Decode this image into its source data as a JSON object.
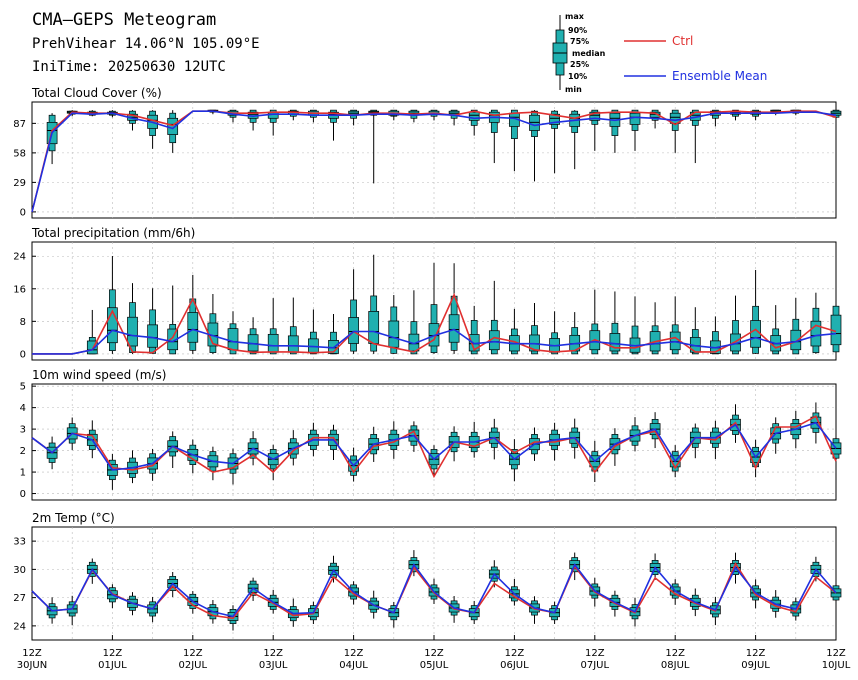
{
  "header": {
    "title": "CMA—GEPS Meteogram",
    "location": "PrehVihear 14.06°N 105.09°E",
    "init_time": "IniTime: 20250630 12UTC"
  },
  "legend": {
    "box_labels": [
      "max",
      "90%",
      "75%",
      "median",
      "25%",
      "10%",
      "min"
    ],
    "ctrl_label": "Ctrl",
    "mean_label": "Ensemble Mean",
    "ctrl_color": "#e03030",
    "mean_color": "#2030e0",
    "box_fill": "#20b0b0"
  },
  "x_axis": {
    "ticks": [
      {
        "top": "12Z",
        "bottom": "30JUN"
      },
      {
        "top": "12Z",
        "bottom": "01JUL"
      },
      {
        "top": "12Z",
        "bottom": "02JUL"
      },
      {
        "top": "12Z",
        "bottom": "03JUL"
      },
      {
        "top": "12Z",
        "bottom": "04JUL"
      },
      {
        "top": "12Z",
        "bottom": "05JUL"
      },
      {
        "top": "12Z",
        "bottom": "06JUL"
      },
      {
        "top": "12Z",
        "bottom": "07JUL"
      },
      {
        "top": "12Z",
        "bottom": "08JUL"
      },
      {
        "top": "12Z",
        "bottom": "09JUL"
      },
      {
        "top": "12Z",
        "bottom": "10JUL"
      }
    ]
  },
  "chart_data": [
    {
      "type": "box-line",
      "title": "Total Cloud Cover (%)",
      "ylim": [
        -6,
        108
      ],
      "yticks": [
        0,
        29,
        58,
        87
      ],
      "x_hours": [
        0,
        6,
        12,
        18,
        24,
        30,
        36,
        42,
        48,
        54,
        60,
        66,
        72,
        78,
        84,
        90,
        96,
        102,
        108,
        114,
        120,
        126,
        132,
        138,
        144,
        150,
        156,
        162,
        168,
        174,
        180,
        186,
        192,
        198,
        204,
        210,
        216,
        222,
        228,
        234,
        240
      ],
      "ctrl": [
        0,
        80,
        98,
        97,
        97,
        95,
        90,
        85,
        99,
        99,
        97,
        97,
        98,
        98,
        97,
        97,
        95,
        97,
        97,
        96,
        97,
        95,
        99,
        95,
        97,
        98,
        95,
        92,
        97,
        98,
        98,
        97,
        86,
        98,
        98,
        99,
        98,
        98,
        99,
        99,
        93
      ],
      "mean": [
        0,
        78,
        97,
        96,
        97,
        92,
        88,
        82,
        99,
        99,
        96,
        94,
        96,
        96,
        95,
        95,
        95,
        96,
        96,
        95,
        96,
        95,
        92,
        93,
        92,
        85,
        88,
        90,
        92,
        90,
        93,
        92,
        90,
        93,
        97,
        97,
        97,
        97,
        98,
        98,
        95
      ],
      "boxes": [
        {
          "x": 6,
          "min": 47,
          "p10": 60,
          "p25": 67,
          "med": 80,
          "p75": 88,
          "p90": 95,
          "max": 97
        },
        {
          "x": 12,
          "min": 94,
          "p10": 96,
          "p25": 97,
          "med": 98,
          "p75": 99,
          "p90": 99,
          "max": 100
        },
        {
          "x": 18,
          "min": 94,
          "p10": 95,
          "p25": 96,
          "med": 97,
          "p75": 98,
          "p90": 99,
          "max": 100
        },
        {
          "x": 24,
          "min": 93,
          "p10": 95,
          "p25": 96,
          "med": 97,
          "p75": 98,
          "p90": 99,
          "max": 100
        },
        {
          "x": 30,
          "min": 80,
          "p10": 87,
          "p25": 90,
          "med": 93,
          "p75": 96,
          "p90": 99,
          "max": 100
        },
        {
          "x": 36,
          "min": 62,
          "p10": 75,
          "p25": 82,
          "med": 90,
          "p75": 95,
          "p90": 99,
          "max": 100
        },
        {
          "x": 42,
          "min": 58,
          "p10": 68,
          "p25": 76,
          "med": 86,
          "p75": 92,
          "p90": 97,
          "max": 100
        },
        {
          "x": 54,
          "min": 96,
          "p10": 98,
          "p25": 99,
          "med": 99,
          "p75": 100,
          "p90": 100,
          "max": 100
        },
        {
          "x": 60,
          "min": 88,
          "p10": 93,
          "p25": 95,
          "med": 97,
          "p75": 99,
          "p90": 100,
          "max": 100
        },
        {
          "x": 66,
          "min": 80,
          "p10": 88,
          "p25": 92,
          "med": 96,
          "p75": 98,
          "p90": 100,
          "max": 100
        },
        {
          "x": 72,
          "min": 75,
          "p10": 88,
          "p25": 92,
          "med": 96,
          "p75": 98,
          "p90": 100,
          "max": 100
        },
        {
          "x": 78,
          "min": 90,
          "p10": 94,
          "p25": 96,
          "med": 98,
          "p75": 99,
          "p90": 100,
          "max": 100
        },
        {
          "x": 84,
          "min": 88,
          "p10": 93,
          "p25": 95,
          "med": 97,
          "p75": 99,
          "p90": 100,
          "max": 100
        },
        {
          "x": 90,
          "min": 70,
          "p10": 88,
          "p25": 92,
          "med": 96,
          "p75": 98,
          "p90": 100,
          "max": 100
        },
        {
          "x": 96,
          "min": 85,
          "p10": 92,
          "p25": 95,
          "med": 97,
          "p75": 99,
          "p90": 100,
          "max": 100
        },
        {
          "x": 102,
          "min": 28,
          "p10": 95,
          "p25": 96,
          "med": 98,
          "p75": 99,
          "p90": 100,
          "max": 100
        },
        {
          "x": 108,
          "min": 90,
          "p10": 94,
          "p25": 95,
          "med": 97,
          "p75": 99,
          "p90": 100,
          "max": 100
        },
        {
          "x": 114,
          "min": 88,
          "p10": 92,
          "p25": 95,
          "med": 97,
          "p75": 99,
          "p90": 100,
          "max": 100
        },
        {
          "x": 120,
          "min": 90,
          "p10": 94,
          "p25": 96,
          "med": 97,
          "p75": 99,
          "p90": 100,
          "max": 100
        },
        {
          "x": 126,
          "min": 85,
          "p10": 92,
          "p25": 95,
          "med": 97,
          "p75": 99,
          "p90": 100,
          "max": 100
        },
        {
          "x": 132,
          "min": 75,
          "p10": 85,
          "p25": 90,
          "med": 95,
          "p75": 98,
          "p90": 100,
          "max": 100
        },
        {
          "x": 138,
          "min": 48,
          "p10": 78,
          "p25": 88,
          "med": 95,
          "p75": 98,
          "p90": 100,
          "max": 100
        },
        {
          "x": 144,
          "min": 40,
          "p10": 72,
          "p25": 84,
          "med": 93,
          "p75": 97,
          "p90": 100,
          "max": 100
        },
        {
          "x": 150,
          "min": 30,
          "p10": 74,
          "p25": 80,
          "med": 88,
          "p75": 95,
          "p90": 99,
          "max": 100
        },
        {
          "x": 156,
          "min": 38,
          "p10": 82,
          "p25": 86,
          "med": 92,
          "p75": 96,
          "p90": 99,
          "max": 100
        },
        {
          "x": 162,
          "min": 42,
          "p10": 78,
          "p25": 84,
          "med": 92,
          "p75": 96,
          "p90": 99,
          "max": 100
        },
        {
          "x": 168,
          "min": 60,
          "p10": 86,
          "p25": 90,
          "med": 95,
          "p75": 98,
          "p90": 100,
          "max": 100
        },
        {
          "x": 174,
          "min": 58,
          "p10": 75,
          "p25": 84,
          "med": 92,
          "p75": 97,
          "p90": 100,
          "max": 100
        },
        {
          "x": 180,
          "min": 60,
          "p10": 80,
          "p25": 86,
          "med": 93,
          "p75": 97,
          "p90": 100,
          "max": 100
        },
        {
          "x": 186,
          "min": 82,
          "p10": 90,
          "p25": 93,
          "med": 96,
          "p75": 98,
          "p90": 100,
          "max": 100
        },
        {
          "x": 192,
          "min": 58,
          "p10": 80,
          "p25": 87,
          "med": 93,
          "p75": 97,
          "p90": 100,
          "max": 100
        },
        {
          "x": 198,
          "min": 48,
          "p10": 85,
          "p25": 90,
          "med": 95,
          "p75": 98,
          "p90": 100,
          "max": 100
        },
        {
          "x": 204,
          "min": 84,
          "p10": 92,
          "p25": 95,
          "med": 97,
          "p75": 99,
          "p90": 100,
          "max": 100
        },
        {
          "x": 210,
          "min": 90,
          "p10": 94,
          "p25": 96,
          "med": 98,
          "p75": 99,
          "p90": 100,
          "max": 100
        },
        {
          "x": 216,
          "min": 90,
          "p10": 94,
          "p25": 96,
          "med": 98,
          "p75": 99,
          "p90": 100,
          "max": 100
        },
        {
          "x": 222,
          "min": 95,
          "p10": 97,
          "p25": 98,
          "med": 99,
          "p75": 100,
          "p90": 100,
          "max": 100
        },
        {
          "x": 228,
          "min": 95,
          "p10": 97,
          "p25": 98,
          "med": 99,
          "p75": 100,
          "p90": 100,
          "max": 100
        },
        {
          "x": 240,
          "min": 90,
          "p10": 93,
          "p25": 95,
          "med": 97,
          "p75": 99,
          "p90": 100,
          "max": 100
        }
      ]
    },
    {
      "type": "box-line",
      "title": "Total precipitation (mm/6h)",
      "ylim": [
        -1.5,
        27.5
      ],
      "yticks": [
        0,
        8,
        16,
        24
      ],
      "x_hours": [
        0,
        6,
        12,
        18,
        24,
        30,
        36,
        42,
        48,
        54,
        60,
        66,
        72,
        78,
        84,
        90,
        96,
        102,
        108,
        114,
        120,
        126,
        132,
        138,
        144,
        150,
        156,
        162,
        168,
        174,
        180,
        186,
        192,
        198,
        204,
        210,
        216,
        222,
        228,
        234,
        240
      ],
      "ctrl": [
        0,
        0,
        0,
        1,
        10.5,
        0.5,
        0.3,
        4.0,
        13.5,
        2.5,
        1.0,
        0.4,
        0.5,
        0.5,
        0.3,
        0.5,
        5.5,
        2.5,
        1.5,
        0.5,
        3.5,
        14.5,
        1.0,
        4.0,
        3.0,
        1.0,
        0.5,
        0.8,
        3.5,
        1.5,
        1.5,
        3.0,
        4.0,
        0.5,
        0.5,
        3.0,
        6.0,
        1.5,
        3.0,
        7.0,
        5.5
      ],
      "mean": [
        0,
        0,
        0,
        1,
        5.8,
        4.5,
        4.0,
        3.0,
        6.0,
        4.5,
        3.0,
        2.5,
        2.0,
        2.0,
        1.8,
        1.5,
        5.5,
        5.5,
        4.0,
        2.5,
        4.5,
        6.0,
        2.5,
        3.0,
        2.5,
        2.5,
        2.0,
        2.5,
        3.0,
        2.5,
        2.0,
        2.5,
        3.0,
        2.0,
        1.5,
        2.5,
        4.0,
        2.5,
        3.0,
        4.5,
        5.0
      ]
    },
    {
      "type": "box-line",
      "title": "10m wind speed (m/s)",
      "ylim": [
        -0.3,
        5.1
      ],
      "yticks": [
        0,
        1,
        2,
        3,
        4,
        5
      ],
      "x_hours": [
        0,
        6,
        12,
        18,
        24,
        30,
        36,
        42,
        48,
        54,
        60,
        66,
        72,
        78,
        84,
        90,
        96,
        102,
        108,
        114,
        120,
        126,
        132,
        138,
        144,
        150,
        156,
        162,
        168,
        174,
        180,
        186,
        192,
        198,
        204,
        210,
        216,
        222,
        228,
        234,
        240
      ],
      "ctrl": [
        2.6,
        1.9,
        2.8,
        2.7,
        1.2,
        1.1,
        1.3,
        2.2,
        1.6,
        1.0,
        1.2,
        1.8,
        1.0,
        2.0,
        2.6,
        2.6,
        1.0,
        2.2,
        2.4,
        2.9,
        0.8,
        2.4,
        2.2,
        2.6,
        1.9,
        2.4,
        2.4,
        2.6,
        1.0,
        2.2,
        2.7,
        2.9,
        1.2,
        2.6,
        2.5,
        3.3,
        1.2,
        3.1,
        3.1,
        3.6,
        1.5
      ],
      "mean": [
        2.6,
        1.9,
        2.8,
        2.5,
        1.1,
        1.2,
        1.4,
        2.2,
        1.8,
        1.5,
        1.4,
        2.1,
        1.6,
        2.1,
        2.5,
        2.5,
        1.3,
        2.3,
        2.5,
        2.7,
        1.6,
        2.4,
        2.4,
        2.6,
        1.6,
        2.3,
        2.5,
        2.6,
        1.5,
        2.3,
        2.7,
        3.0,
        1.5,
        2.6,
        2.6,
        3.2,
        1.7,
        2.8,
        3.0,
        3.3,
        2.1
      ]
    },
    {
      "type": "box-line",
      "title": "2m Temp (°C)",
      "ylim": [
        22.5,
        34.5
      ],
      "yticks": [
        24,
        27,
        30,
        33
      ],
      "x_hours": [
        0,
        6,
        12,
        18,
        24,
        30,
        36,
        42,
        48,
        54,
        60,
        66,
        72,
        78,
        84,
        90,
        96,
        102,
        108,
        114,
        120,
        126,
        132,
        138,
        144,
        150,
        156,
        162,
        168,
        174,
        180,
        186,
        192,
        198,
        204,
        210,
        216,
        222,
        228,
        234,
        240
      ],
      "ctrl": [
        27.7,
        25.6,
        25.8,
        29.9,
        27.4,
        26.4,
        25.8,
        28.2,
        26.2,
        25.1,
        24.8,
        27.5,
        26.4,
        25.1,
        25.3,
        29.2,
        27.4,
        26.2,
        25.4,
        30.2,
        27.5,
        25.8,
        25.4,
        28.5,
        27.1,
        25.8,
        25.4,
        30.3,
        27.6,
        26.4,
        25.4,
        29.1,
        27.4,
        26.4,
        25.6,
        30.6,
        27.3,
        26.1,
        25.5,
        29.2,
        27.5
      ],
      "mean": [
        27.7,
        25.6,
        25.8,
        30.0,
        27.3,
        26.4,
        25.8,
        28.5,
        26.6,
        25.5,
        25.0,
        28.0,
        26.5,
        25.3,
        25.4,
        29.9,
        27.6,
        26.2,
        25.4,
        30.5,
        27.6,
        25.9,
        25.4,
        29.5,
        27.4,
        25.9,
        25.4,
        30.5,
        27.7,
        26.5,
        25.5,
        30.2,
        27.7,
        26.5,
        25.7,
        30.2,
        27.5,
        26.3,
        25.8,
        30.0,
        27.5
      ]
    }
  ]
}
